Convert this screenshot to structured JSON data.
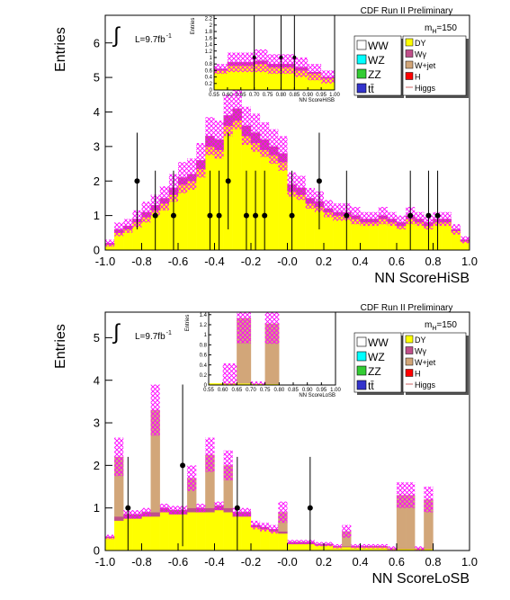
{
  "chart_data": [
    {
      "type": "histogram",
      "annotation": "CDF Run II Preliminary",
      "integral": "∫",
      "lumi": "L=9.7fb",
      "lumi_exp": "-1",
      "mass": "m",
      "mass_sub": "H",
      "mass_value": "=150",
      "xlabel": "NN ScoreHiSB",
      "ylabel": "Entries",
      "xlim": [
        -1,
        1
      ],
      "ylim": [
        0,
        6.8
      ],
      "xticks": [
        {
          "value": -1,
          "label": "-1.0"
        },
        -0.8,
        -0.6,
        -0.4,
        -0.2,
        {
          "value": 0,
          "label": "-0.0"
        },
        0.2,
        0.4,
        0.6,
        0.8,
        {
          "value": 1,
          "label": "1.0"
        }
      ],
      "yticks": [
        0,
        1,
        2,
        3,
        4,
        5,
        6
      ],
      "bins": [
        -1,
        -0.95,
        -0.9,
        -0.85,
        -0.8,
        -0.75,
        -0.7,
        -0.65,
        -0.6,
        -0.55,
        -0.5,
        -0.45,
        -0.4,
        -0.35,
        -0.3,
        -0.25,
        -0.2,
        -0.15,
        -0.1,
        -0.05,
        0,
        0.05,
        0.1,
        0.15,
        0.2,
        0.25,
        0.3,
        0.35,
        0.4,
        0.45,
        0.5,
        0.55,
        0.6,
        0.65,
        0.7,
        0.75,
        0.8,
        0.85,
        0.9,
        0.95,
        1
      ],
      "series": [
        {
          "name": "DY",
          "color": "#ffff00",
          "values": [
            0.15,
            0.5,
            0.6,
            0.8,
            0.95,
            1.15,
            1.35,
            1.6,
            1.9,
            2.0,
            2.35,
            3.0,
            2.9,
            3.6,
            3.75,
            3.3,
            3.1,
            2.9,
            2.75,
            2.55,
            1.7,
            1.6,
            1.35,
            1.25,
            1.1,
            1.0,
            1.0,
            0.9,
            0.8,
            0.8,
            0.9,
            0.8,
            0.7,
            0.9,
            0.8,
            0.7,
            0.8,
            0.8,
            0.55,
            0.25
          ]
        },
        {
          "name": "Wγ",
          "color": "#c0508a",
          "values": [
            0.05,
            0.1,
            0.1,
            0.1,
            0.15,
            0.15,
            0.15,
            0.2,
            0.2,
            0.2,
            0.25,
            0.3,
            0.3,
            0.3,
            0.35,
            0.3,
            0.3,
            0.3,
            0.25,
            0.25,
            0.2,
            0.2,
            0.15,
            0.15,
            0.1,
            0.1,
            0.1,
            0.1,
            0.1,
            0.1,
            0.1,
            0.1,
            0.1,
            0.1,
            0.1,
            0.1,
            0.1,
            0.1,
            0.05,
            0.05
          ]
        },
        {
          "name": "W+jet",
          "color": "#d2a679",
          "values": [
            0,
            0,
            0,
            0,
            0,
            0,
            0,
            0,
            0,
            0,
            0,
            0,
            0,
            0,
            0,
            0,
            0,
            0,
            0,
            0,
            0,
            0,
            0,
            0,
            0,
            0,
            0,
            0,
            0,
            0,
            0,
            0,
            0,
            0,
            0,
            0,
            0,
            0,
            0,
            0
          ]
        }
      ],
      "band_color": "#ff00ff",
      "uncertainty": [
        0.1,
        0.2,
        0.2,
        0.25,
        0.3,
        0.3,
        0.35,
        0.4,
        0.45,
        0.45,
        0.5,
        0.55,
        0.55,
        0.6,
        0.6,
        0.55,
        0.55,
        0.5,
        0.5,
        0.5,
        0.35,
        0.35,
        0.3,
        0.3,
        0.25,
        0.25,
        0.25,
        0.25,
        0.2,
        0.2,
        0.25,
        0.2,
        0.2,
        0.25,
        0.2,
        0.2,
        0.2,
        0.2,
        0.15,
        0.1
      ],
      "data": {
        "x": [
          -0.825,
          -0.725,
          -0.625,
          -0.425,
          -0.375,
          -0.325,
          -0.225,
          -0.175,
          -0.125,
          0.025,
          0.175,
          0.325,
          0.675,
          0.775,
          0.825
        ],
        "values": [
          2,
          1,
          1,
          1,
          1,
          2,
          1,
          1,
          1,
          1,
          2,
          1,
          1,
          1,
          1
        ],
        "errors": [
          1.4,
          1.3,
          1.3,
          1.3,
          1.3,
          1.4,
          1.3,
          1.3,
          1.3,
          1.3,
          1.4,
          1.3,
          1.3,
          1.3,
          1.3
        ]
      },
      "legend": {
        "left": [
          {
            "name": "WW",
            "color": "#ffffff"
          },
          {
            "name": "WZ",
            "color": "#00ffff"
          },
          {
            "name": "ZZ",
            "color": "#33cc33"
          },
          {
            "name": "tt̄",
            "color": "#3333cc"
          }
        ],
        "right_extra": [
          {
            "name": "H",
            "color": "#ff0000"
          },
          {
            "name": "Higgs",
            "color": "#cc6666",
            "line": true
          }
        ]
      },
      "inset": {
        "xlabel": "NN ScoreHiSB",
        "ylabel": "Entries",
        "xlim": [
          0.55,
          1
        ],
        "ylim": [
          0,
          2.3
        ],
        "xticks": [
          0.55,
          {
            "value": 0.6,
            "label": "0.60"
          },
          0.65,
          {
            "value": 0.7,
            "label": "0.70"
          },
          0.75,
          {
            "value": 0.8,
            "label": "0.80"
          },
          0.85,
          {
            "value": 0.9,
            "label": "0.90"
          },
          0.95,
          {
            "value": 1,
            "label": "1.00"
          }
        ],
        "yticks": [
          0,
          0.2,
          0.4,
          0.6,
          0.8,
          1,
          1.2,
          1.4,
          1.6,
          1.8,
          2,
          2.2
        ],
        "bins": [
          0.55,
          0.6,
          0.65,
          0.7,
          0.75,
          0.8,
          0.85,
          0.9,
          0.95,
          1
        ],
        "series": [
          {
            "color": "#ffff00",
            "values": [
              0.6,
              0.75,
              0.75,
              0.8,
              0.7,
              0.7,
              0.6,
              0.5,
              0.35
            ]
          },
          {
            "color": "#c0508a",
            "values": [
              0.05,
              0.1,
              0.1,
              0.1,
              0.1,
              0.1,
              0.1,
              0.05,
              0.05
            ]
          }
        ],
        "band_color": "#ff00ff",
        "uncertainty": [
          0.15,
          0.3,
          0.3,
          0.35,
          0.3,
          0.3,
          0.3,
          0.25,
          0.2
        ],
        "data": {
          "x": [
            0.7,
            0.8,
            0.85
          ],
          "values": [
            1,
            1,
            1
          ],
          "errors": [
            1.3,
            1.3,
            1.3
          ]
        }
      }
    },
    {
      "type": "histogram",
      "annotation": "CDF Run II Preliminary",
      "integral": "∫",
      "lumi": "L=9.7fb",
      "lumi_exp": "-1",
      "mass": "m",
      "mass_sub": "H",
      "mass_value": "=150",
      "xlabel": "NN ScoreLoSB",
      "ylabel": "Entries",
      "xlim": [
        -1,
        1
      ],
      "ylim": [
        0,
        5.6
      ],
      "xticks": [
        {
          "value": -1,
          "label": "-1.0"
        },
        -0.8,
        -0.6,
        -0.4,
        -0.2,
        {
          "value": 0,
          "label": "-0.0"
        },
        0.2,
        0.4,
        0.6,
        0.8,
        {
          "value": 1,
          "label": "1.0"
        }
      ],
      "yticks": [
        0,
        1,
        2,
        3,
        4,
        5
      ],
      "bins": [
        -1,
        -0.95,
        -0.9,
        -0.85,
        -0.8,
        -0.75,
        -0.7,
        -0.65,
        -0.6,
        -0.55,
        -0.5,
        -0.45,
        -0.4,
        -0.35,
        -0.3,
        -0.25,
        -0.2,
        -0.15,
        -0.1,
        -0.05,
        0,
        0.05,
        0.1,
        0.15,
        0.2,
        0.25,
        0.3,
        0.35,
        0.4,
        0.45,
        0.5,
        0.55,
        0.6,
        0.65,
        0.7,
        0.75,
        0.8,
        0.85,
        0.9,
        0.95,
        1
      ],
      "series": [
        {
          "name": "DY",
          "color": "#ffff00",
          "values": [
            0.3,
            0.7,
            0.75,
            0.75,
            0.8,
            0.8,
            0.9,
            0.85,
            0.85,
            0.9,
            0.9,
            0.9,
            0.95,
            0.9,
            0.8,
            0.8,
            0.55,
            0.5,
            0.45,
            0.4,
            0.15,
            0.15,
            0.15,
            0.12,
            0.12,
            0.08,
            0.08,
            0.08,
            0.08,
            0.08,
            0.08,
            0.04,
            0.04,
            0.04,
            0.04,
            0.04,
            0,
            0,
            0,
            0
          ]
        },
        {
          "name": "Wγ",
          "color": "#c0508a",
          "values": [
            0.02,
            0.1,
            0.1,
            0.1,
            0.1,
            0.1,
            0.1,
            0.1,
            0.1,
            0.1,
            0.1,
            0.1,
            0.1,
            0.1,
            0.1,
            0.1,
            0.05,
            0.05,
            0.05,
            0.05,
            0.05,
            0.05,
            0.05,
            0.03,
            0.03,
            0.02,
            0.02,
            0.02,
            0.02,
            0.02,
            0.02,
            0.01,
            0.01,
            0.01,
            0.01,
            0.01,
            0,
            0,
            0,
            0
          ]
        },
        {
          "name": "W+jet",
          "color": "#d2a679",
          "values": [
            0,
            1.4,
            0,
            0,
            0,
            2.4,
            0,
            0,
            0,
            0.7,
            0,
            1.25,
            0,
            1.0,
            0,
            0,
            0,
            0,
            0,
            0.45,
            0,
            0,
            0,
            0,
            0,
            0,
            0.35,
            0,
            0,
            0,
            0,
            0,
            1.25,
            1.25,
            0,
            1.15,
            0,
            0,
            0,
            0
          ]
        }
      ],
      "band_color": "#ff00ff",
      "uncertainty": [
        0.05,
        0.45,
        0.1,
        0.1,
        0.1,
        0.6,
        0.1,
        0.1,
        0.1,
        0.3,
        0.1,
        0.4,
        0.1,
        0.35,
        0.1,
        0.1,
        0.1,
        0.1,
        0.1,
        0.25,
        0.05,
        0.05,
        0.05,
        0.05,
        0.05,
        0.05,
        0.15,
        0.05,
        0.05,
        0.05,
        0.05,
        0.05,
        0.3,
        0.3,
        0.05,
        0.3,
        0,
        0,
        0,
        0
      ],
      "data": {
        "x": [
          -0.875,
          -0.575,
          -0.275,
          0.125
        ],
        "values": [
          1,
          2,
          1,
          1
        ],
        "errors": [
          1.2,
          1.9,
          1.2,
          1.2
        ]
      },
      "legend": {
        "left": [
          {
            "name": "WW",
            "color": "#ffffff"
          },
          {
            "name": "WZ",
            "color": "#00ffff"
          },
          {
            "name": "ZZ",
            "color": "#33cc33"
          },
          {
            "name": "tt̄",
            "color": "#3333cc"
          }
        ],
        "right_extra": [
          {
            "name": "H",
            "color": "#ff0000"
          },
          {
            "name": "Higgs",
            "color": "#cc6666",
            "line": true
          }
        ]
      },
      "inset": {
        "xlabel": "NN ScoreLoSB",
        "ylabel": "Entries",
        "xlim": [
          0.55,
          1
        ],
        "ylim": [
          0,
          1.45
        ],
        "xticks": [
          0.55,
          {
            "value": 0.6,
            "label": "0.60"
          },
          0.65,
          {
            "value": 0.7,
            "label": "0.70"
          },
          0.75,
          {
            "value": 0.8,
            "label": "0.80"
          },
          0.85,
          {
            "value": 0.9,
            "label": "0.90"
          },
          0.95,
          {
            "value": 1,
            "label": "1.00"
          }
        ],
        "yticks": [
          0,
          0.2,
          0.4,
          0.6,
          0.8,
          1,
          1.2,
          1.4
        ],
        "bins": [
          0.55,
          0.6,
          0.65,
          0.7,
          0.75,
          0.8,
          0.85,
          0.9,
          0.95,
          1
        ],
        "series": [
          {
            "color": "#ffff00",
            "values": [
              0.03,
              0.03,
              0.03,
              0.02,
              0.02,
              0,
              0,
              0,
              0
            ]
          },
          {
            "color": "#d2a679",
            "values": [
              0,
              0,
              1.3,
              0,
              1.2,
              0,
              0,
              0,
              0
            ]
          }
        ],
        "band_color": "#ff00ff",
        "uncertainty": [
          0,
          0.4,
          0.5,
          0.05,
          0.4,
          0,
          0,
          0,
          0
        ]
      }
    }
  ]
}
